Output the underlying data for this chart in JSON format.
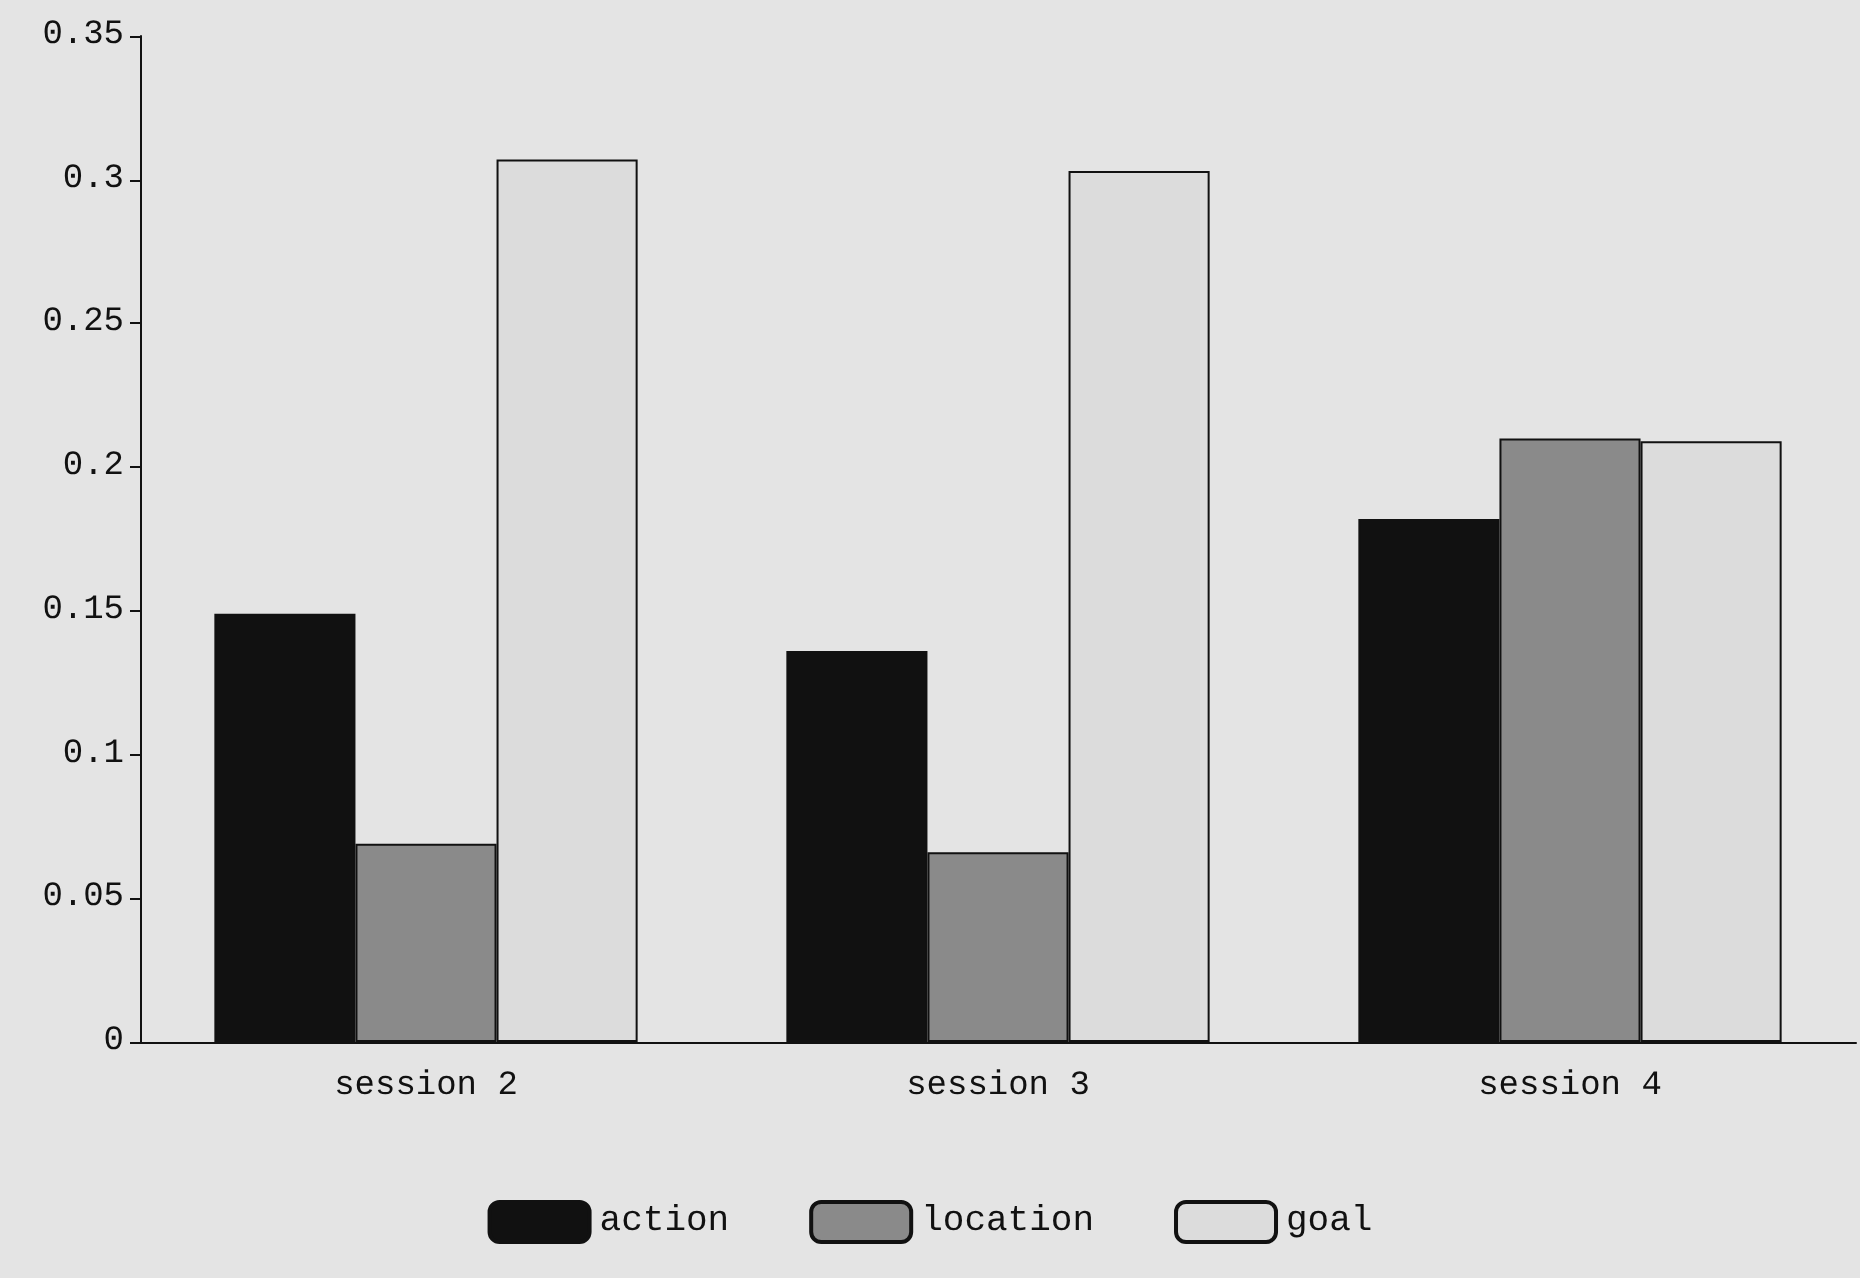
{
  "chart_data": {
    "type": "bar",
    "categories": [
      "session 2",
      "session 3",
      "session 4"
    ],
    "series": [
      {
        "name": "action",
        "color": "#111111",
        "values": [
          0.149,
          0.136,
          0.182
        ]
      },
      {
        "name": "location",
        "color": "#8a8a8a",
        "values": [
          0.069,
          0.066,
          0.21
        ]
      },
      {
        "name": "goal",
        "color": "#dcdcdc",
        "values": [
          0.307,
          0.303,
          0.209
        ]
      }
    ],
    "ylim": [
      0,
      0.35
    ],
    "yticks": [
      0,
      0.05,
      0.1,
      0.15,
      0.2,
      0.25,
      0.3,
      0.35
    ],
    "grid": false,
    "legend": "bottom"
  }
}
